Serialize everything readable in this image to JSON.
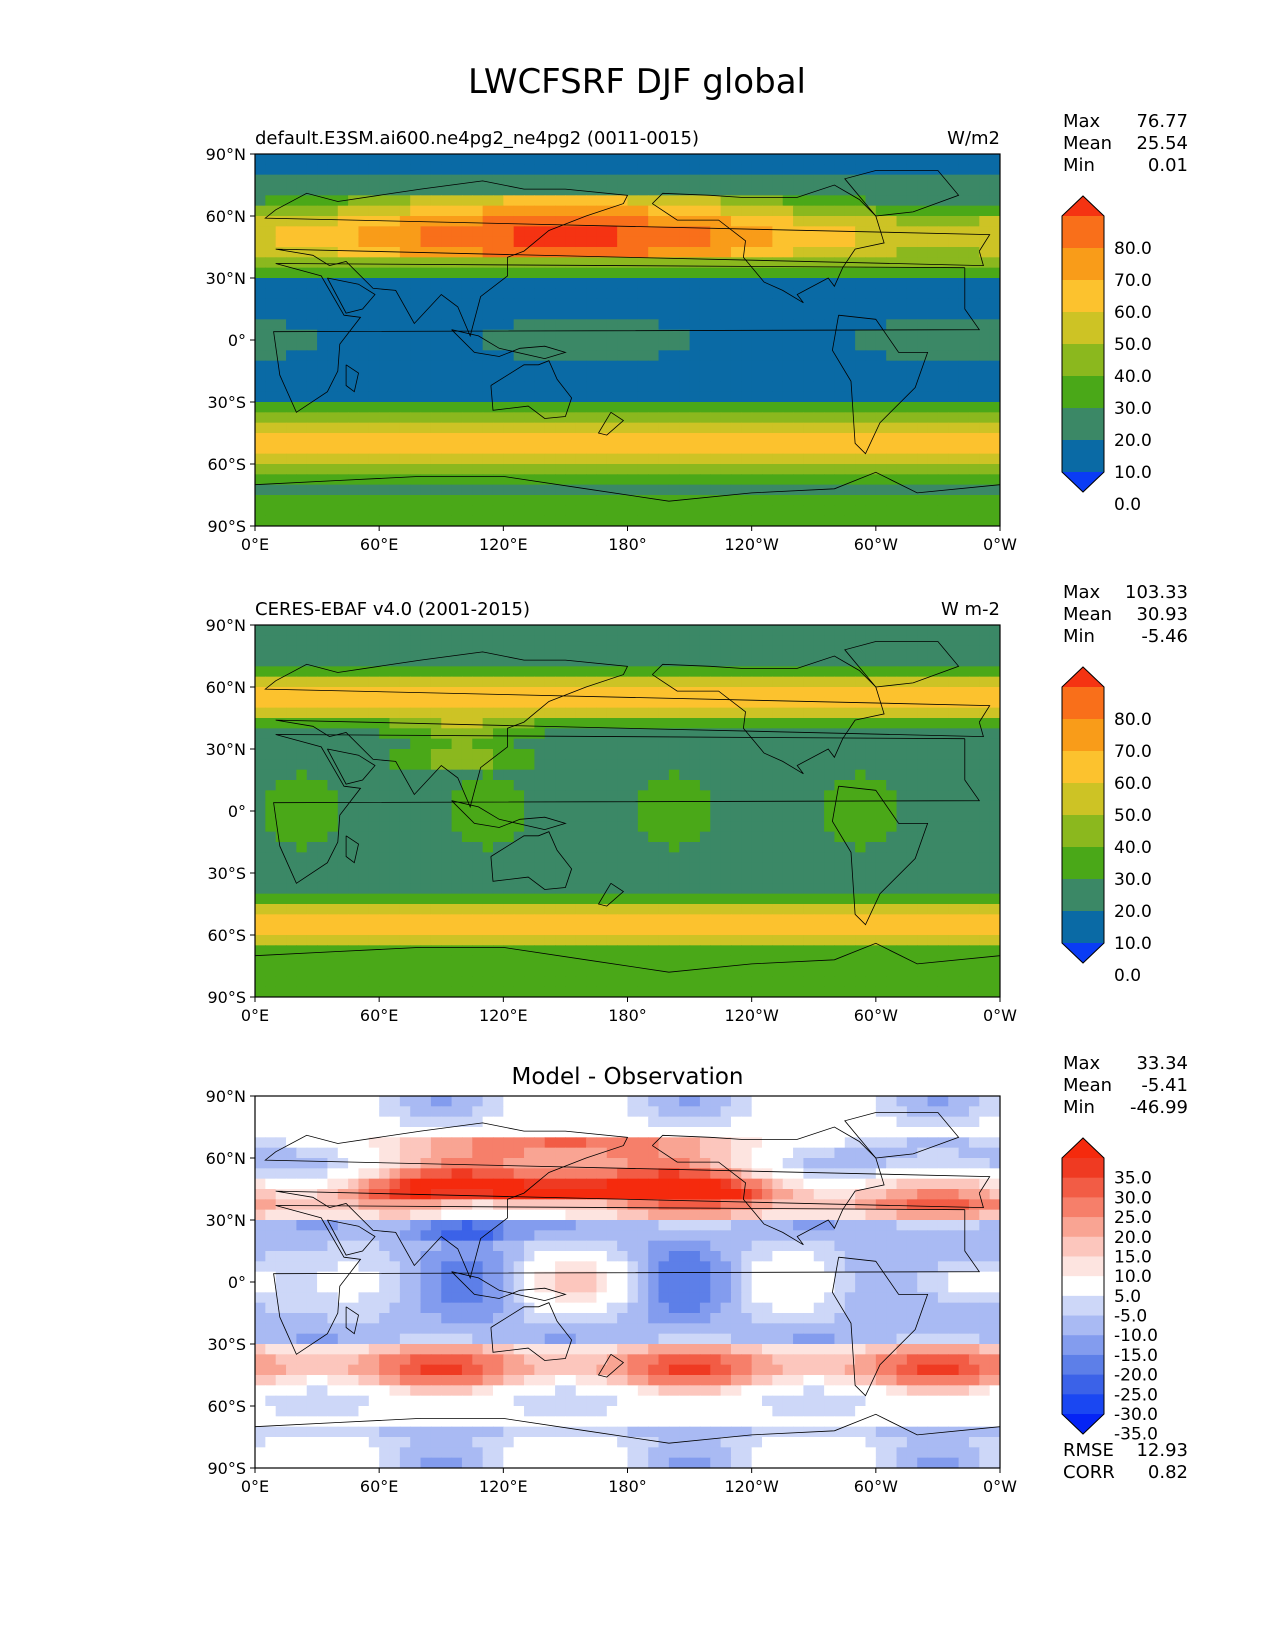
{
  "figure_title": "LWCFSRF DJF global",
  "colors": {
    "abs_levels": [
      "#0a3cf5",
      "#0a6aa5",
      "#3b8866",
      "#4aa818",
      "#8bb81e",
      "#cdc325",
      "#fcc22e",
      "#f99c19",
      "#f96f1a",
      "#f53312"
    ],
    "diff_levels": [
      "#0524f5",
      "#1a47f2",
      "#3b62e8",
      "#5d7fe8",
      "#839cee",
      "#a9baf3",
      "#cdd7f8",
      "#ffffff",
      "#fde4e0",
      "#fcc6bd",
      "#f9a493",
      "#f67f6a",
      "#f25c45",
      "#ef3a22",
      "#f52a0d"
    ],
    "land_outline": "#000000"
  },
  "axes": {
    "lat_ticks": [
      "90°N",
      "60°N",
      "30°N",
      "0°",
      "30°S",
      "60°S",
      "90°S"
    ],
    "lon_ticks": [
      "0°E",
      "60°E",
      "120°E",
      "180°",
      "120°W",
      "60°W",
      "0°W"
    ]
  },
  "panels": [
    {
      "left_title": "default.E3SM.ai600.ne4pg2_ne4pg2 (0011-0015)",
      "center_title": "",
      "units": "W/m2",
      "stats": [
        [
          "Max",
          "76.77"
        ],
        [
          "Mean",
          "25.54"
        ],
        [
          "Min",
          "0.01"
        ]
      ],
      "colorbar_labels": [
        "80.0",
        "70.0",
        "60.0",
        "50.0",
        "40.0",
        "30.0",
        "20.0",
        "10.0",
        "0.0"
      ],
      "footer_stats": []
    },
    {
      "left_title": "CERES-EBAF v4.0 (2001-2015)",
      "center_title": "",
      "units": "W m-2",
      "stats": [
        [
          "Max",
          "103.33"
        ],
        [
          "Mean",
          "30.93"
        ],
        [
          "Min",
          "-5.46"
        ]
      ],
      "colorbar_labels": [
        "80.0",
        "70.0",
        "60.0",
        "50.0",
        "40.0",
        "30.0",
        "20.0",
        "10.0",
        "0.0"
      ],
      "footer_stats": []
    },
    {
      "left_title": "",
      "center_title": "Model - Observation",
      "units": "",
      "stats": [
        [
          "Max",
          "33.34"
        ],
        [
          "Mean",
          "-5.41"
        ],
        [
          "Min",
          "-46.99"
        ]
      ],
      "colorbar_labels": [
        "35.0",
        "30.0",
        "25.0",
        "20.0",
        "15.0",
        "10.0",
        "5.0",
        "-5.0",
        "-10.0",
        "-15.0",
        "-20.0",
        "-25.0",
        "-30.0",
        "-35.0"
      ],
      "footer_stats": [
        [
          "RMSE",
          "12.93"
        ],
        [
          "CORR",
          "0.82"
        ]
      ]
    }
  ]
}
